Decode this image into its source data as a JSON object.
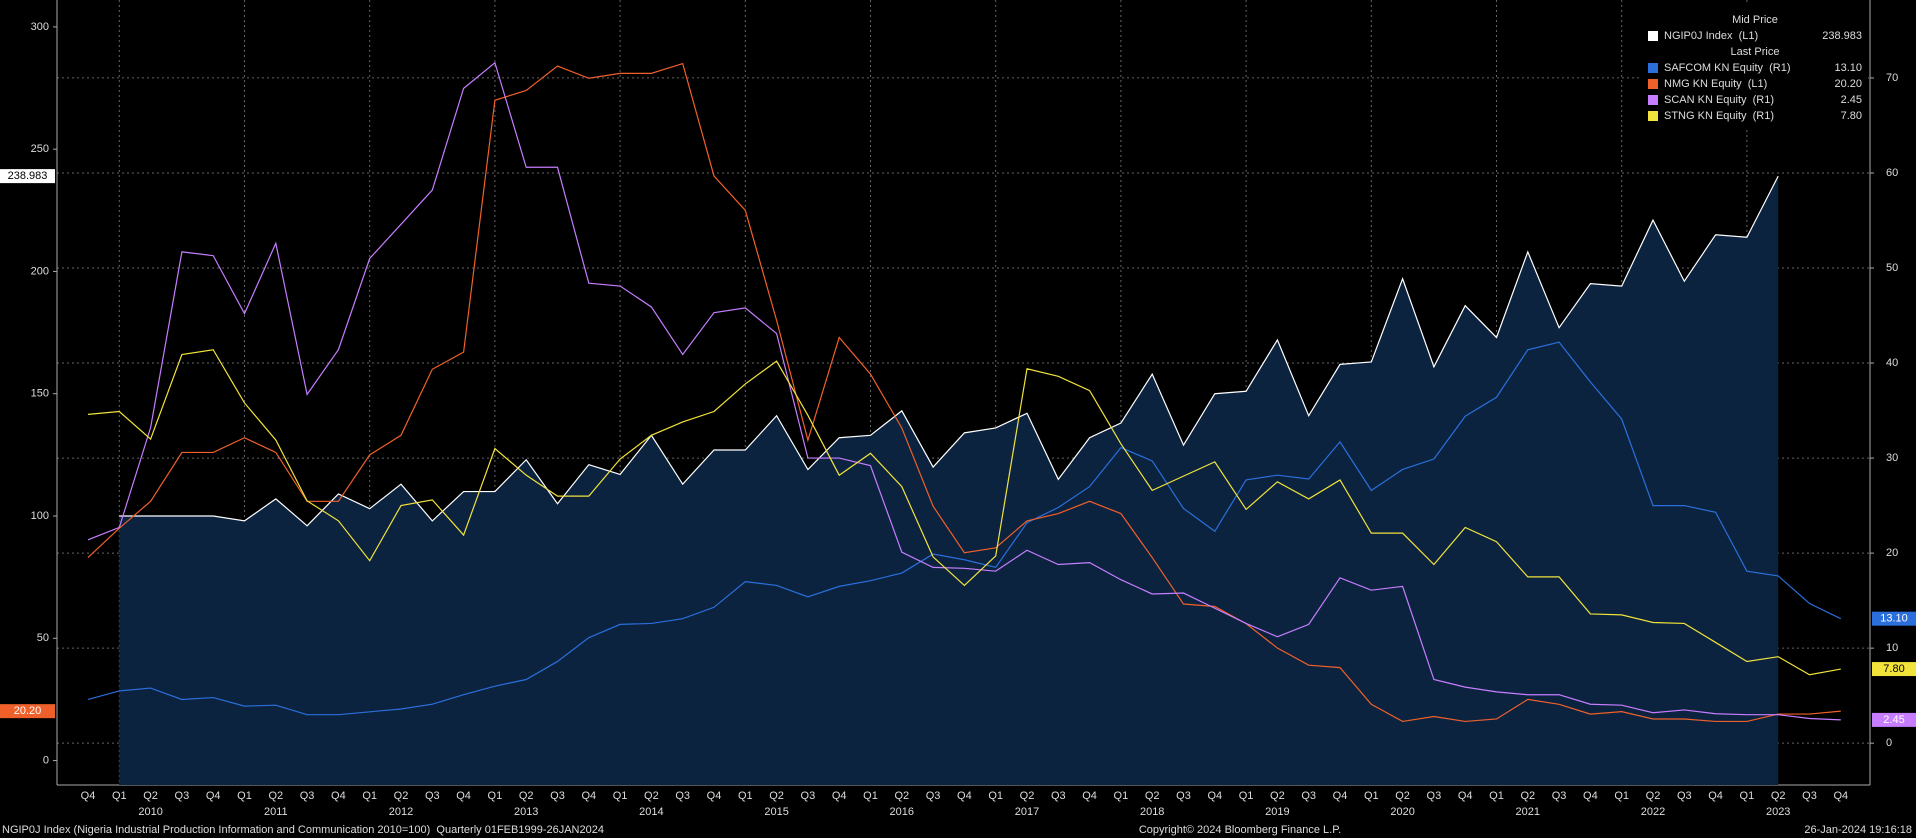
{
  "chart_data": {
    "type": "line",
    "categories": [
      "Q4",
      "Q1",
      "Q2",
      "Q3",
      "Q4",
      "Q1",
      "Q2",
      "Q3",
      "Q4",
      "Q1",
      "Q2",
      "Q3",
      "Q4",
      "Q1",
      "Q2",
      "Q3",
      "Q4",
      "Q1",
      "Q2",
      "Q3",
      "Q4",
      "Q1",
      "Q2",
      "Q3",
      "Q4",
      "Q1",
      "Q2",
      "Q3",
      "Q4",
      "Q1",
      "Q2",
      "Q3",
      "Q4",
      "Q1",
      "Q2",
      "Q3",
      "Q4",
      "Q1",
      "Q2",
      "Q3",
      "Q4",
      "Q1",
      "Q2",
      "Q3",
      "Q4",
      "Q1",
      "Q2",
      "Q3",
      "Q4",
      "Q1",
      "Q2",
      "Q3",
      "Q4",
      "Q1",
      "Q2",
      "Q3",
      "Q4"
    ],
    "years": [
      null,
      null,
      "2010",
      null,
      null,
      null,
      "2011",
      null,
      null,
      null,
      "2012",
      null,
      null,
      null,
      "2013",
      null,
      null,
      null,
      "2014",
      null,
      null,
      null,
      "2015",
      null,
      null,
      null,
      "2016",
      null,
      null,
      null,
      "2017",
      null,
      null,
      null,
      "2018",
      null,
      null,
      null,
      "2019",
      null,
      null,
      null,
      "2020",
      null,
      null,
      null,
      "2021",
      null,
      null,
      null,
      "2022",
      null,
      null,
      null,
      "2023",
      null,
      null
    ],
    "ylim": [
      -10,
      311
    ],
    "yticks": [
      0,
      50,
      100,
      150,
      200,
      250,
      300
    ],
    "y2lim": [
      -4.4,
      78.2
    ],
    "y2ticks": [
      0,
      10,
      20,
      30,
      40,
      50,
      60,
      70
    ],
    "grid": true,
    "legend_headers": [
      "Mid Price",
      "Last Price"
    ],
    "series": [
      {
        "name": "NGIP0J Index  (L1)",
        "color": "#ffffff",
        "axis": "y",
        "area": "#0c2340",
        "values": [
          null,
          100,
          100,
          100,
          100,
          98,
          107,
          96,
          109,
          103,
          113,
          98,
          110,
          110,
          123,
          105,
          121,
          117,
          133,
          113,
          127,
          127,
          141,
          119,
          132,
          133,
          143,
          120,
          134,
          136,
          142,
          115,
          132,
          138,
          158,
          129,
          150,
          151,
          172,
          141,
          162,
          163,
          197,
          161,
          186,
          173,
          208,
          177,
          195,
          194,
          221,
          196,
          215,
          214,
          238.983,
          null,
          null
        ],
        "value_labels": [
          null,
          null,
          null,
          null,
          null,
          null,
          null,
          null,
          null,
          null,
          null,
          null,
          null,
          null,
          null,
          null,
          null,
          null,
          null,
          null,
          null,
          null,
          null,
          null,
          null,
          null,
          null,
          null,
          null,
          null,
          null,
          null,
          null,
          null,
          null,
          null,
          null,
          null,
          null,
          null,
          null,
          null,
          null,
          null,
          null,
          null,
          null,
          null,
          null,
          null,
          null,
          null,
          null,
          null,
          "238.983",
          null,
          null
        ]
      },
      {
        "name": "SAFCOM KN Equity  (R1)",
        "color": "#2a6fdb",
        "axis": "y2",
        "values": [
          4.6,
          5.5,
          5.8,
          4.6,
          4.8,
          3.9,
          4.0,
          3.0,
          3.0,
          3.3,
          3.6,
          4.1,
          5.1,
          6.0,
          6.7,
          8.6,
          11.1,
          12.5,
          12.6,
          13.1,
          14.3,
          17.0,
          16.6,
          15.4,
          16.5,
          17.1,
          17.9,
          19.9,
          19.3,
          18.5,
          23.2,
          24.8,
          27.0,
          31.1,
          29.7,
          24.7,
          22.3,
          27.7,
          28.2,
          27.8,
          31.7,
          26.6,
          28.8,
          29.9,
          34.4,
          36.4,
          41.4,
          42.2,
          38.0,
          34.1,
          25.0,
          25.0,
          24.3,
          18.1,
          17.6,
          14.7,
          13.1
        ],
        "value_labels": [
          null,
          null,
          null,
          null,
          null,
          null,
          null,
          null,
          null,
          null,
          null,
          null,
          null,
          null,
          null,
          null,
          null,
          null,
          null,
          null,
          null,
          null,
          null,
          null,
          null,
          null,
          null,
          null,
          null,
          null,
          null,
          null,
          null,
          null,
          null,
          null,
          null,
          null,
          null,
          null,
          null,
          null,
          null,
          null,
          null,
          null,
          null,
          null,
          null,
          null,
          null,
          null,
          null,
          null,
          null,
          null,
          "13.10"
        ]
      },
      {
        "name": "NMG KN Equity  (L1)",
        "color": "#f0602a",
        "axis": "y",
        "values": [
          83,
          95,
          106,
          126,
          126,
          132,
          126,
          106,
          106,
          125,
          133,
          160,
          167,
          270,
          274,
          284,
          279,
          281,
          281,
          285,
          239,
          225,
          180,
          131,
          173,
          158,
          136,
          104,
          85,
          87,
          98,
          101,
          106,
          101,
          83,
          64,
          63,
          56,
          46,
          39,
          38,
          23,
          16,
          18,
          16,
          17,
          25,
          23,
          19,
          20,
          17,
          17,
          16,
          16,
          19,
          19,
          20.2
        ],
        "value_labels": [
          null,
          null,
          null,
          null,
          null,
          null,
          null,
          null,
          null,
          null,
          null,
          null,
          null,
          null,
          null,
          null,
          null,
          null,
          null,
          null,
          null,
          null,
          null,
          null,
          null,
          null,
          null,
          null,
          null,
          null,
          null,
          null,
          null,
          null,
          null,
          null,
          null,
          null,
          null,
          null,
          null,
          null,
          null,
          null,
          null,
          null,
          null,
          null,
          null,
          null,
          null,
          null,
          null,
          null,
          null,
          null,
          "20.20"
        ]
      },
      {
        "name": "SCAN KN Equity  (R1)",
        "color": "#c77dff",
        "axis": "y2",
        "values": [
          21.4,
          22.7,
          33.2,
          51.7,
          51.3,
          45.2,
          52.6,
          36.7,
          41.4,
          51.0,
          54.6,
          58.2,
          68.9,
          71.6,
          60.6,
          60.6,
          48.4,
          48.1,
          45.9,
          40.9,
          45.3,
          45.8,
          43.1,
          30.0,
          30.0,
          29.2,
          20.1,
          18.5,
          18.4,
          18.1,
          20.3,
          18.8,
          19.0,
          17.2,
          15.7,
          15.8,
          14.2,
          12.6,
          11.2,
          12.5,
          17.4,
          16.1,
          16.5,
          6.7,
          5.9,
          5.4,
          5.1,
          5.1,
          4.1,
          4.0,
          3.2,
          3.5,
          3.1,
          3.0,
          3.0,
          2.6,
          2.45
        ],
        "value_labels": [
          null,
          null,
          null,
          null,
          null,
          null,
          null,
          null,
          null,
          null,
          null,
          null,
          null,
          null,
          null,
          null,
          null,
          null,
          null,
          null,
          null,
          null,
          null,
          null,
          null,
          null,
          null,
          null,
          null,
          null,
          null,
          null,
          null,
          null,
          null,
          null,
          null,
          null,
          null,
          null,
          null,
          null,
          null,
          null,
          null,
          null,
          null,
          null,
          null,
          null,
          null,
          null,
          null,
          null,
          null,
          null,
          "2.45"
        ]
      },
      {
        "name": "STNG KN Equity  (R1)",
        "color": "#f2e33a",
        "axis": "y2",
        "values": [
          34.6,
          34.9,
          32.0,
          40.9,
          41.4,
          35.8,
          31.9,
          25.5,
          23.4,
          19.2,
          25.0,
          25.6,
          21.9,
          31.0,
          28.2,
          26.0,
          26.0,
          29.9,
          32.4,
          33.8,
          34.9,
          37.8,
          40.2,
          34.5,
          28.2,
          30.5,
          27.0,
          19.6,
          16.6,
          19.7,
          39.4,
          38.6,
          37.1,
          31.5,
          26.6,
          28.1,
          29.6,
          24.6,
          27.5,
          25.7,
          27.7,
          22.1,
          22.1,
          18.8,
          22.7,
          21.2,
          17.5,
          17.5,
          13.6,
          13.5,
          12.7,
          12.6,
          10.6,
          8.6,
          9.1,
          7.2,
          7.8
        ],
        "value_labels": [
          null,
          null,
          null,
          null,
          null,
          null,
          null,
          null,
          null,
          null,
          null,
          null,
          null,
          null,
          null,
          null,
          null,
          null,
          null,
          null,
          null,
          null,
          null,
          null,
          null,
          null,
          null,
          null,
          null,
          null,
          null,
          null,
          null,
          null,
          null,
          null,
          null,
          null,
          null,
          null,
          null,
          null,
          null,
          null,
          null,
          null,
          null,
          null,
          null,
          null,
          null,
          null,
          null,
          null,
          null,
          null,
          "7.80"
        ]
      }
    ]
  },
  "footer": {
    "left": "NGIP0J Index (Nigeria Industrial Production Information and Communication 2010=100)  Quarterly 01FEB1999-26JAN2024",
    "center": "Copyright© 2024 Bloomberg Finance L.P.",
    "right": "26-Jan-2024 19:16:18"
  }
}
